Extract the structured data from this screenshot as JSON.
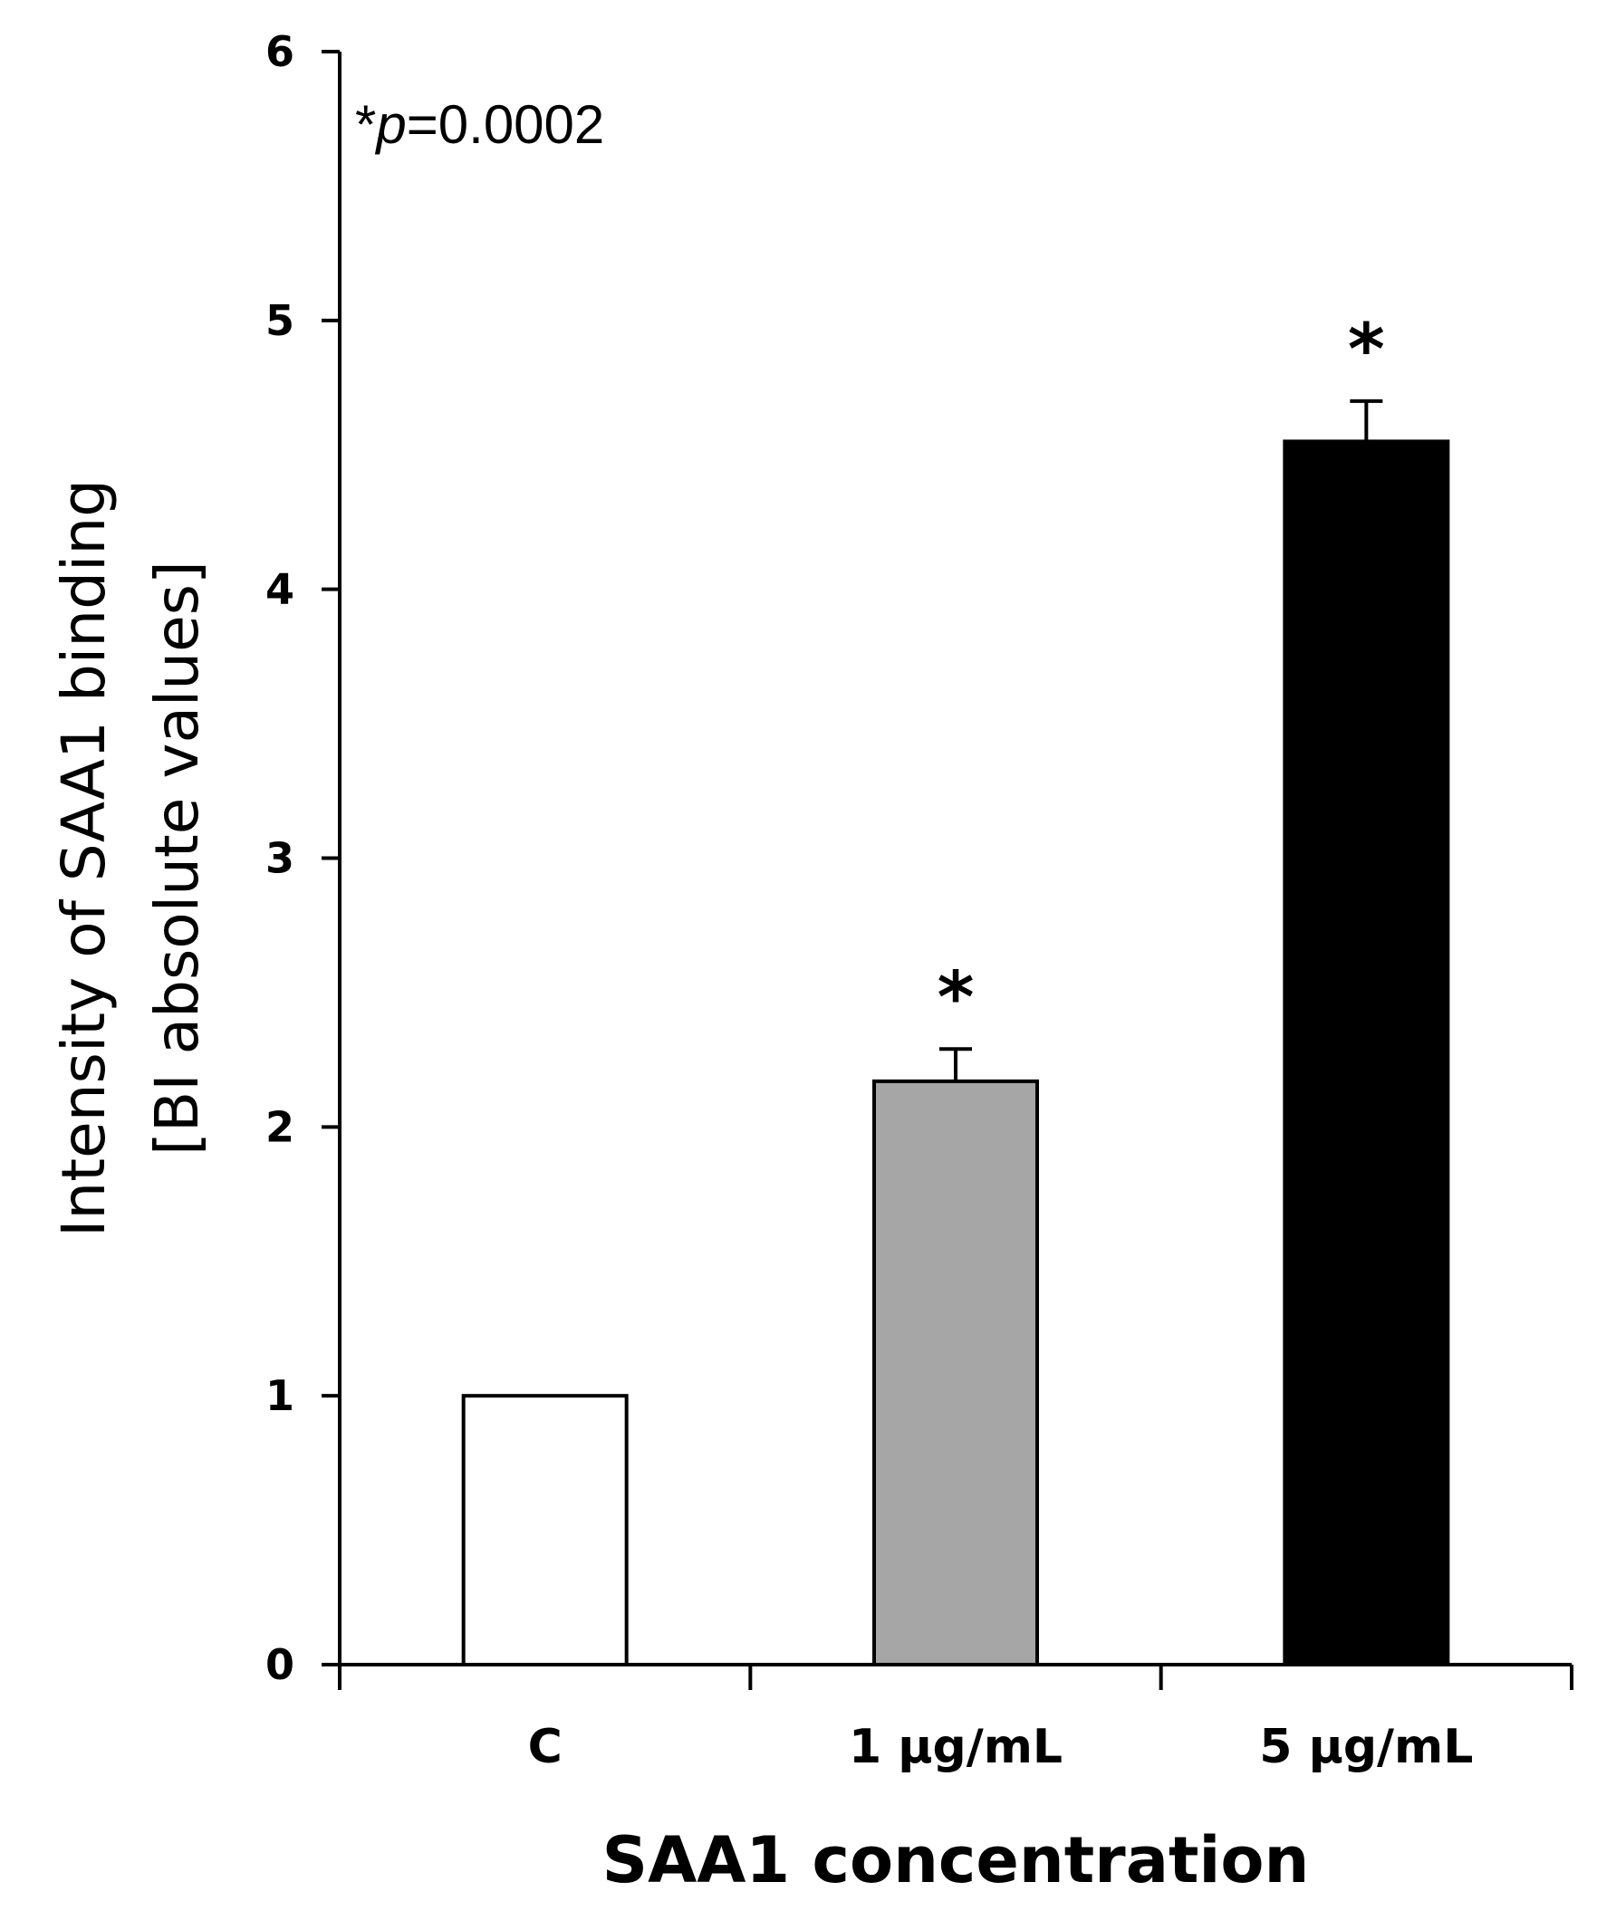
{
  "chart_data": {
    "type": "bar",
    "title": "",
    "categories": [
      "C",
      "1 µg/mL",
      "5 µg/mL"
    ],
    "values": [
      1.0,
      2.17,
      4.55
    ],
    "errors": [
      0,
      0.12,
      0.15
    ],
    "colors": [
      "#ffffff",
      "#a6a6a6",
      "#000000"
    ],
    "significance": [
      "",
      "*",
      "*"
    ],
    "xlabel": "SAA1 concentration",
    "ylabel_lines": [
      "Intensity of SAA1 binding",
      "[BI absolute values]"
    ],
    "ylim": [
      0,
      6
    ],
    "yticks": [
      0,
      1,
      2,
      3,
      4,
      5,
      6
    ],
    "annotation": {
      "star": "*",
      "p_symbol": "p",
      "p_text": "=0.0002"
    },
    "grid": false,
    "legend": "none"
  }
}
